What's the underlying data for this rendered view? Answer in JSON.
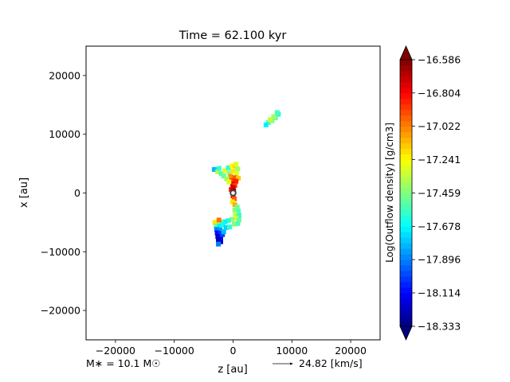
{
  "chart_data": {
    "type": "heatmap",
    "title": "Time = 62.100 kyr",
    "xlabel": "z [au]",
    "ylabel": "x [au]",
    "xlim": [
      -25000,
      25000
    ],
    "ylim": [
      -25000,
      25000
    ],
    "xticks": [
      -20000,
      -10000,
      0,
      10000,
      20000
    ],
    "xtick_labels": [
      "−20000",
      "−10000",
      "0",
      "10000",
      "20000"
    ],
    "yticks": [
      20000,
      10000,
      0,
      -10000,
      -20000
    ],
    "ytick_labels": [
      "20000",
      "10000",
      "0",
      "−10000",
      "−20000"
    ],
    "grid": false,
    "colormap": "jet",
    "colorbar": {
      "label": "Log(Outflow density) [g/cm3]",
      "min": -18.333,
      "max": -16.586,
      "ticks": [
        -16.586,
        -16.804,
        -17.022,
        -17.241,
        -17.459,
        -17.678,
        -17.896,
        -18.114,
        -18.333
      ],
      "tick_labels": [
        "−16.586",
        "−16.804",
        "−17.022",
        "−17.241",
        "−17.459",
        "−17.678",
        "−17.896",
        "−18.114",
        "−18.333"
      ],
      "extend": "both"
    },
    "star_marker": {
      "z": 0,
      "x": 0
    },
    "regions": [
      {
        "name": "upper-right-clump",
        "cells": [
          {
            "z": 6000,
            "x": 12000,
            "v": -17.55
          },
          {
            "z": 6600,
            "x": 12300,
            "v": -17.45
          },
          {
            "z": 7200,
            "x": 12800,
            "v": -17.5
          },
          {
            "z": 7700,
            "x": 13400,
            "v": -17.62
          },
          {
            "z": 5600,
            "x": 11600,
            "v": -17.7
          },
          {
            "z": 6900,
            "x": 13000,
            "v": -17.4
          },
          {
            "z": 7500,
            "x": 13700,
            "v": -17.55
          },
          {
            "z": 6300,
            "x": 12500,
            "v": -17.35
          }
        ]
      },
      {
        "name": "north-lobe",
        "cells": [
          {
            "z": -3200,
            "x": 4000,
            "v": -17.8
          },
          {
            "z": -2600,
            "x": 3600,
            "v": -17.35
          },
          {
            "z": -2000,
            "x": 3300,
            "v": -17.55
          },
          {
            "z": -1400,
            "x": 3800,
            "v": -17.3
          },
          {
            "z": -800,
            "x": 4300,
            "v": -17.6
          },
          {
            "z": -200,
            "x": 4600,
            "v": -17.25
          },
          {
            "z": 400,
            "x": 4600,
            "v": -17.15
          },
          {
            "z": 800,
            "x": 4100,
            "v": -17.4
          },
          {
            "z": -600,
            "x": 3400,
            "v": -17.45
          },
          {
            "z": 0,
            "x": 3700,
            "v": -17.2
          },
          {
            "z": 600,
            "x": 3300,
            "v": -17.3
          },
          {
            "z": -400,
            "x": 2800,
            "v": -17.05
          },
          {
            "z": 300,
            "x": 2600,
            "v": -16.95
          },
          {
            "z": 900,
            "x": 2500,
            "v": -17.15
          },
          {
            "z": -200,
            "x": 2100,
            "v": -16.9
          },
          {
            "z": 500,
            "x": 2000,
            "v": -16.85
          },
          {
            "z": -100,
            "x": 1500,
            "v": -16.75
          },
          {
            "z": 300,
            "x": 1300,
            "v": -16.9
          },
          {
            "z": 0,
            "x": 900,
            "v": -16.7
          },
          {
            "z": -300,
            "x": 600,
            "v": -16.8
          },
          {
            "z": 100,
            "x": 400,
            "v": -16.65
          },
          {
            "z": -1600,
            "x": 2900,
            "v": -17.5
          },
          {
            "z": -1100,
            "x": 2400,
            "v": -17.4
          },
          {
            "z": -700,
            "x": 1900,
            "v": -17.3
          },
          {
            "z": -2400,
            "x": 4200,
            "v": -17.6
          },
          {
            "z": 500,
            "x": 4900,
            "v": -17.3
          }
        ]
      },
      {
        "name": "south-lobe",
        "cells": [
          {
            "z": 0,
            "x": -500,
            "v": -16.8
          },
          {
            "z": 200,
            "x": -1000,
            "v": -16.95
          },
          {
            "z": -100,
            "x": -1500,
            "v": -17.2
          },
          {
            "z": 300,
            "x": -2000,
            "v": -17.1
          },
          {
            "z": 700,
            "x": -2400,
            "v": -17.5
          },
          {
            "z": 300,
            "x": -2900,
            "v": -17.45
          },
          {
            "z": 900,
            "x": -3100,
            "v": -17.55
          },
          {
            "z": 400,
            "x": -3600,
            "v": -17.35
          },
          {
            "z": 1000,
            "x": -3800,
            "v": -17.6
          },
          {
            "z": 500,
            "x": -4300,
            "v": -17.3
          },
          {
            "z": 1000,
            "x": -4600,
            "v": -17.5
          },
          {
            "z": -200,
            "x": -4500,
            "v": -17.45
          },
          {
            "z": -800,
            "x": -4700,
            "v": -17.6
          },
          {
            "z": -1400,
            "x": -4900,
            "v": -17.7
          },
          {
            "z": -2000,
            "x": -5000,
            "v": -17.55
          },
          {
            "z": -2600,
            "x": -5100,
            "v": -17.35
          },
          {
            "z": -3100,
            "x": -5000,
            "v": -17.2
          },
          {
            "z": -2400,
            "x": -4600,
            "v": -17.0
          },
          {
            "z": -2900,
            "x": -5600,
            "v": -17.5
          },
          {
            "z": -2300,
            "x": -5600,
            "v": -17.7
          },
          {
            "z": -1700,
            "x": -5400,
            "v": -17.65
          },
          {
            "z": -2800,
            "x": -6200,
            "v": -17.9
          },
          {
            "z": -2200,
            "x": -6300,
            "v": -17.85
          },
          {
            "z": -2700,
            "x": -6800,
            "v": -18.1
          },
          {
            "z": -2200,
            "x": -6900,
            "v": -18.05
          },
          {
            "z": -2600,
            "x": -7400,
            "v": -18.2
          },
          {
            "z": -2100,
            "x": -7500,
            "v": -18.15
          },
          {
            "z": -2500,
            "x": -8100,
            "v": -18.25
          },
          {
            "z": -2100,
            "x": -8300,
            "v": -18.2
          },
          {
            "z": -2500,
            "x": -8700,
            "v": -17.9
          },
          {
            "z": -1800,
            "x": -7100,
            "v": -18.0
          },
          {
            "z": -1600,
            "x": -6600,
            "v": -17.8
          },
          {
            "z": -1200,
            "x": -5900,
            "v": -17.75
          },
          {
            "z": -600,
            "x": -5800,
            "v": -17.6
          },
          {
            "z": 200,
            "x": -5300,
            "v": -17.45
          },
          {
            "z": 800,
            "x": -5200,
            "v": -17.55
          }
        ]
      }
    ]
  },
  "stellar_mass_label": "M∗ = 10.1 M☉",
  "velocity_scale_label": "24.82 [km/s]"
}
